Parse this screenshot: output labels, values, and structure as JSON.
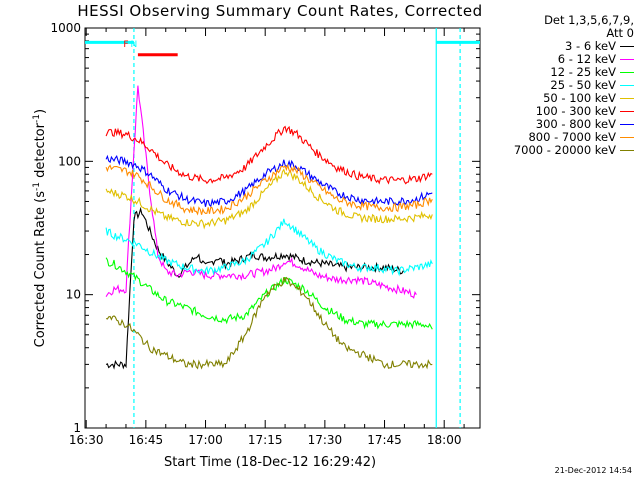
{
  "chart_data": {
    "type": "line",
    "title": "HESSI Observing Summary Count Rates, Corrected",
    "xlabel": "Start Time (18-Dec-12 16:29:42)",
    "ylabel": {
      "main": "Corrected Count Rate (s",
      "sup1": "-1",
      "mid": " detector",
      "sup2": "-1",
      "end": ")"
    },
    "yscale": "log",
    "ylim": [
      1,
      1000
    ],
    "xlim": [
      "16:29:42",
      "18:09:00"
    ],
    "x_tick_labels": [
      "16:30",
      "16:45",
      "17:00",
      "17:15",
      "17:30",
      "17:45",
      "18:00"
    ],
    "y_tick_labels": [
      "1",
      "10",
      "100",
      "1000"
    ],
    "legend": {
      "header_lines": [
        "Det 1,3,5,6,7,9,",
        "Att 0"
      ],
      "placement": "right"
    },
    "series": [
      {
        "name": "3 - 6 keV",
        "color": "#000000",
        "points": [
          [
            "16:35",
            3
          ],
          [
            "16:37",
            3
          ],
          [
            "16:40",
            3
          ],
          [
            "16:42",
            38
          ],
          [
            "16:44",
            42
          ],
          [
            "16:46",
            30
          ],
          [
            "16:48",
            22
          ],
          [
            "16:50",
            18
          ],
          [
            "16:53",
            14
          ],
          [
            "16:55",
            16
          ],
          [
            "16:58",
            20
          ],
          [
            "17:00",
            16
          ],
          [
            "17:03",
            19
          ],
          [
            "17:05",
            17
          ],
          [
            "17:08",
            18
          ],
          [
            "17:12",
            20
          ],
          [
            "17:15",
            19
          ],
          [
            "17:20",
            20
          ],
          [
            "17:25",
            18
          ],
          [
            "17:30",
            17
          ],
          [
            "17:35",
            16
          ],
          [
            "17:40",
            16
          ],
          [
            "17:45",
            16
          ],
          [
            "17:50",
            15
          ]
        ]
      },
      {
        "name": "6 - 12 keV",
        "color": "#ff00ff",
        "points": [
          [
            "16:35",
            10
          ],
          [
            "16:37",
            11
          ],
          [
            "16:40",
            11
          ],
          [
            "16:42",
            120
          ],
          [
            "16:43",
            370
          ],
          [
            "16:44",
            200
          ],
          [
            "16:46",
            60
          ],
          [
            "16:48",
            20
          ],
          [
            "16:50",
            15
          ],
          [
            "16:53",
            14
          ],
          [
            "16:56",
            15
          ],
          [
            "17:00",
            14
          ],
          [
            "17:05",
            14
          ],
          [
            "17:10",
            14
          ],
          [
            "17:15",
            15
          ],
          [
            "17:18",
            16
          ],
          [
            "17:20",
            18
          ],
          [
            "17:23",
            17
          ],
          [
            "17:28",
            14
          ],
          [
            "17:33",
            13
          ],
          [
            "17:38",
            13
          ],
          [
            "17:43",
            12
          ],
          [
            "17:48",
            11
          ],
          [
            "17:53",
            10
          ]
        ]
      },
      {
        "name": "12 - 25 keV",
        "color": "#00ff00",
        "points": [
          [
            "16:35",
            18
          ],
          [
            "16:37",
            17
          ],
          [
            "16:40",
            15
          ],
          [
            "16:43",
            13
          ],
          [
            "16:46",
            11
          ],
          [
            "16:50",
            9
          ],
          [
            "16:55",
            8
          ],
          [
            "17:00",
            7
          ],
          [
            "17:05",
            6.5
          ],
          [
            "17:10",
            7
          ],
          [
            "17:15",
            10
          ],
          [
            "17:20",
            13
          ],
          [
            "17:25",
            11
          ],
          [
            "17:30",
            8
          ],
          [
            "17:35",
            6.5
          ],
          [
            "17:40",
            6
          ],
          [
            "17:45",
            6
          ],
          [
            "17:50",
            6
          ],
          [
            "17:55",
            6
          ],
          [
            "17:57",
            5.5
          ]
        ]
      },
      {
        "name": "25 - 50 keV",
        "color": "#00ffff",
        "points": [
          [
            "16:35",
            30
          ],
          [
            "16:37",
            28
          ],
          [
            "16:40",
            26
          ],
          [
            "16:43",
            24
          ],
          [
            "16:46",
            21
          ],
          [
            "16:50",
            18
          ],
          [
            "16:55",
            16
          ],
          [
            "17:00",
            15
          ],
          [
            "17:05",
            16
          ],
          [
            "17:10",
            18
          ],
          [
            "17:15",
            24
          ],
          [
            "17:20",
            36
          ],
          [
            "17:23",
            30
          ],
          [
            "17:28",
            22
          ],
          [
            "17:33",
            18
          ],
          [
            "17:38",
            16
          ],
          [
            "17:43",
            16
          ],
          [
            "17:48",
            15
          ],
          [
            "17:53",
            16
          ],
          [
            "17:57",
            17
          ]
        ]
      },
      {
        "name": "50 - 100 keV",
        "color": "#e0c000",
        "points": [
          [
            "16:35",
            60
          ],
          [
            "16:37",
            58
          ],
          [
            "16:40",
            55
          ],
          [
            "16:43",
            50
          ],
          [
            "16:46",
            44
          ],
          [
            "16:50",
            38
          ],
          [
            "16:55",
            35
          ],
          [
            "17:00",
            34
          ],
          [
            "17:05",
            36
          ],
          [
            "17:10",
            42
          ],
          [
            "17:15",
            60
          ],
          [
            "17:20",
            85
          ],
          [
            "17:23",
            75
          ],
          [
            "17:28",
            55
          ],
          [
            "17:33",
            43
          ],
          [
            "17:38",
            38
          ],
          [
            "17:43",
            37
          ],
          [
            "17:48",
            37
          ],
          [
            "17:53",
            38
          ],
          [
            "17:57",
            40
          ]
        ]
      },
      {
        "name": "100 - 300 keV",
        "color": "#ff0000",
        "points": [
          [
            "16:35",
            165
          ],
          [
            "16:37",
            165
          ],
          [
            "16:40",
            160
          ],
          [
            "16:43",
            145
          ],
          [
            "16:46",
            125
          ],
          [
            "16:50",
            95
          ],
          [
            "16:55",
            78
          ],
          [
            "17:00",
            72
          ],
          [
            "17:05",
            75
          ],
          [
            "17:10",
            90
          ],
          [
            "17:15",
            130
          ],
          [
            "17:20",
            180
          ],
          [
            "17:23",
            160
          ],
          [
            "17:28",
            115
          ],
          [
            "17:33",
            90
          ],
          [
            "17:38",
            78
          ],
          [
            "17:43",
            73
          ],
          [
            "17:48",
            72
          ],
          [
            "17:53",
            74
          ],
          [
            "17:57",
            80
          ]
        ]
      },
      {
        "name": "300 - 800 keV",
        "color": "#0000ff",
        "points": [
          [
            "16:35",
            105
          ],
          [
            "16:37",
            103
          ],
          [
            "16:40",
            100
          ],
          [
            "16:43",
            92
          ],
          [
            "16:46",
            80
          ],
          [
            "16:50",
            62
          ],
          [
            "16:55",
            52
          ],
          [
            "17:00",
            48
          ],
          [
            "17:05",
            50
          ],
          [
            "17:10",
            60
          ],
          [
            "17:15",
            80
          ],
          [
            "17:20",
            98
          ],
          [
            "17:23",
            92
          ],
          [
            "17:28",
            72
          ],
          [
            "17:33",
            58
          ],
          [
            "17:38",
            52
          ],
          [
            "17:43",
            50
          ],
          [
            "17:48",
            50
          ],
          [
            "17:53",
            52
          ],
          [
            "17:57",
            58
          ]
        ]
      },
      {
        "name": "800 - 7000 keV",
        "color": "#ff8c00",
        "points": [
          [
            "16:35",
            90
          ],
          [
            "16:37",
            88
          ],
          [
            "16:40",
            85
          ],
          [
            "16:43",
            78
          ],
          [
            "16:46",
            66
          ],
          [
            "16:50",
            52
          ],
          [
            "16:55",
            44
          ],
          [
            "17:00",
            42
          ],
          [
            "17:05",
            44
          ],
          [
            "17:10",
            54
          ],
          [
            "17:15",
            72
          ],
          [
            "17:20",
            92
          ],
          [
            "17:23",
            85
          ],
          [
            "17:28",
            66
          ],
          [
            "17:33",
            52
          ],
          [
            "17:38",
            47
          ],
          [
            "17:43",
            45
          ],
          [
            "17:48",
            45
          ],
          [
            "17:53",
            47
          ],
          [
            "17:57",
            52
          ]
        ]
      },
      {
        "name": "7000 - 20000 keV",
        "color": "#808000",
        "points": [
          [
            "16:35",
            7
          ],
          [
            "16:37",
            6.5
          ],
          [
            "16:40",
            6
          ],
          [
            "16:43",
            5
          ],
          [
            "16:46",
            4
          ],
          [
            "16:50",
            3.5
          ],
          [
            "16:55",
            3
          ],
          [
            "17:00",
            3
          ],
          [
            "17:05",
            3
          ],
          [
            "17:10",
            5
          ],
          [
            "17:15",
            10
          ],
          [
            "17:20",
            13
          ],
          [
            "17:25",
            10
          ],
          [
            "17:30",
            6
          ],
          [
            "17:35",
            4
          ],
          [
            "17:40",
            3.5
          ],
          [
            "17:45",
            3
          ],
          [
            "17:50",
            3
          ],
          [
            "17:55",
            3
          ],
          [
            "17:57",
            3
          ]
        ]
      }
    ],
    "attenuator_markers": [
      {
        "label": "F",
        "time": "16:40",
        "color": "#ff0000"
      },
      {
        "label": "N",
        "time": "16:42",
        "color": "#00ffff"
      }
    ],
    "state_bars": [
      {
        "color": "#ff0000",
        "from": "16:43",
        "to": "16:53",
        "level": 630
      },
      {
        "color": "#00ffff",
        "from": "16:29:42",
        "to": "16:42",
        "level": 780
      },
      {
        "color": "#00ffff",
        "from": "17:58",
        "to": "18:09",
        "level": 780
      }
    ],
    "night_lines": [
      {
        "time": "16:42",
        "style": "dashed",
        "color": "#00ffff"
      },
      {
        "time": "17:58",
        "style": "solid",
        "color": "#00ffff"
      },
      {
        "time": "18:04",
        "style": "dashed",
        "color": "#00ffff"
      }
    ]
  },
  "footer": {
    "timestamp": "21-Dec-2012 14:54"
  }
}
